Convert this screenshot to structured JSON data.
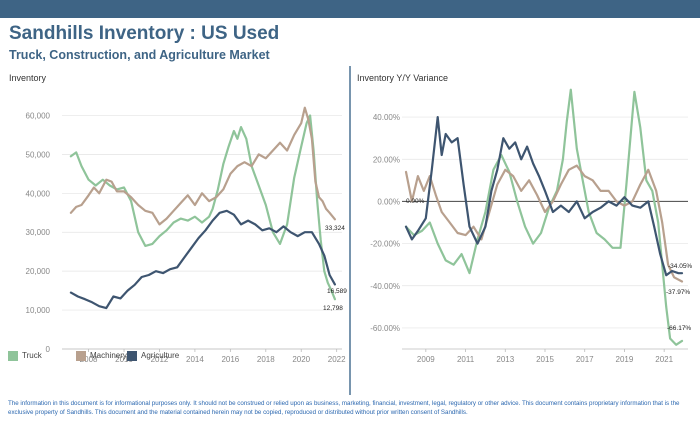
{
  "header": {
    "title": "Sandhills Inventory : US Used",
    "subtitle": "Truck, Construction, and Agriculture Market"
  },
  "colors": {
    "Truck": "#8fc49a",
    "Machinery": "#b8a08e",
    "Agriculture": "#3e5570",
    "bar": "#3e6485"
  },
  "legend": {
    "truck": "Truck",
    "machinery": "Machinery",
    "agriculture": "Agriculture"
  },
  "footer": {
    "text": "The information in this document is for informational purposes only.  It should not be construed or relied upon as business, marketing, financial, investment, legal, regulatory or other advice. This document contains proprietary information that is the exclusive property of Sandhills. This document and the material contained herein may not be copied, reproduced or distributed without prior written consent of Sandhills."
  },
  "chart_data": [
    {
      "type": "line",
      "title": "Inventory",
      "x_unit": "year",
      "xlim": [
        2006.5,
        2022.3
      ],
      "xticks": [
        2008,
        2010,
        2012,
        2014,
        2016,
        2018,
        2020,
        2022
      ],
      "ylim": [
        0,
        65000
      ],
      "yticks": [
        0,
        10000,
        20000,
        30000,
        40000,
        50000,
        60000
      ],
      "ytick_labels": [
        "0",
        "10,000",
        "20,000",
        "30,000",
        "40,000",
        "50,000",
        "60,000"
      ],
      "grid": true,
      "series": [
        {
          "name": "Truck",
          "x": [
            2007.0,
            2007.3,
            2007.6,
            2008.0,
            2008.4,
            2008.8,
            2009.2,
            2009.6,
            2010.0,
            2010.4,
            2010.8,
            2011.2,
            2011.6,
            2012.0,
            2012.4,
            2012.8,
            2013.2,
            2013.6,
            2014.0,
            2014.4,
            2014.8,
            2015.0,
            2015.3,
            2015.6,
            2015.9,
            2016.2,
            2016.4,
            2016.6,
            2016.9,
            2017.2,
            2017.6,
            2018.0,
            2018.4,
            2018.8,
            2019.2,
            2019.6,
            2020.0,
            2020.3,
            2020.5,
            2020.7,
            2020.9,
            2021.1,
            2021.3,
            2021.5,
            2021.7,
            2021.9
          ],
          "values": [
            49500,
            50500,
            47000,
            43500,
            42000,
            43500,
            42000,
            41000,
            41500,
            38000,
            30000,
            26500,
            27000,
            29000,
            30500,
            32500,
            33500,
            33000,
            34000,
            32500,
            34000,
            36000,
            41000,
            47500,
            52000,
            56000,
            54000,
            57000,
            54000,
            47000,
            42000,
            37000,
            30000,
            27000,
            32000,
            44000,
            52000,
            58000,
            60000,
            51000,
            38000,
            28000,
            20000,
            17000,
            15000,
            12798
          ]
        },
        {
          "name": "Machinery",
          "x": [
            2007.0,
            2007.3,
            2007.6,
            2008.0,
            2008.3,
            2008.6,
            2009.0,
            2009.3,
            2009.6,
            2010.0,
            2010.4,
            2010.8,
            2011.2,
            2011.6,
            2012.0,
            2012.4,
            2012.8,
            2013.2,
            2013.6,
            2014.0,
            2014.4,
            2014.8,
            2015.2,
            2015.6,
            2016.0,
            2016.4,
            2016.8,
            2017.2,
            2017.6,
            2018.0,
            2018.4,
            2018.8,
            2019.2,
            2019.6,
            2020.0,
            2020.2,
            2020.4,
            2020.6,
            2020.8,
            2021.0,
            2021.2,
            2021.4,
            2021.6,
            2021.9
          ],
          "values": [
            35000,
            36500,
            37000,
            39500,
            41500,
            40000,
            43500,
            43000,
            40500,
            40500,
            39000,
            37000,
            35500,
            35000,
            32000,
            33500,
            35500,
            37500,
            39500,
            37000,
            40000,
            38000,
            39000,
            41000,
            45000,
            47000,
            48000,
            47000,
            50000,
            49000,
            51000,
            53000,
            51000,
            55000,
            58000,
            62000,
            59000,
            54000,
            43000,
            39000,
            38000,
            36000,
            35000,
            33324
          ]
        },
        {
          "name": "Agriculture",
          "x": [
            2007.0,
            2007.4,
            2007.8,
            2008.2,
            2008.6,
            2009.0,
            2009.4,
            2009.8,
            2010.2,
            2010.6,
            2011.0,
            2011.4,
            2011.8,
            2012.2,
            2012.6,
            2013.0,
            2013.4,
            2013.8,
            2014.2,
            2014.6,
            2015.0,
            2015.4,
            2015.8,
            2016.2,
            2016.6,
            2017.0,
            2017.4,
            2017.8,
            2018.2,
            2018.6,
            2019.0,
            2019.4,
            2019.8,
            2020.2,
            2020.6,
            2021.0,
            2021.3,
            2021.6,
            2021.9
          ],
          "values": [
            14500,
            13500,
            12800,
            12000,
            11000,
            10500,
            13500,
            13000,
            15000,
            16500,
            18500,
            19000,
            20000,
            19500,
            20500,
            21000,
            23500,
            26000,
            28500,
            30500,
            33000,
            35000,
            35500,
            34500,
            32000,
            33000,
            32000,
            30500,
            31000,
            30000,
            31500,
            30000,
            29000,
            30000,
            30000,
            27000,
            24000,
            19000,
            16589
          ]
        }
      ],
      "annotations": [
        "33,324",
        "16,589",
        "12,798"
      ]
    },
    {
      "type": "line",
      "title": "Inventory Y/Y Variance",
      "x_unit": "year",
      "xlim": [
        2007.8,
        2022.2
      ],
      "xticks": [
        2009,
        2011,
        2013,
        2015,
        2017,
        2019,
        2021
      ],
      "ylim": [
        -70,
        50
      ],
      "yticks": [
        -60,
        -40,
        -20,
        0,
        20,
        40
      ],
      "ytick_labels": [
        "-60.00%",
        "-40.00%",
        "-20.00%",
        "0.00%",
        "20.00%",
        "40.00%"
      ],
      "grid": true,
      "series": [
        {
          "name": "Truck",
          "x": [
            2008.0,
            2008.4,
            2008.8,
            2009.2,
            2009.6,
            2010.0,
            2010.4,
            2010.8,
            2011.2,
            2011.6,
            2012.0,
            2012.4,
            2012.8,
            2013.2,
            2013.6,
            2014.0,
            2014.4,
            2014.8,
            2015.2,
            2015.6,
            2015.9,
            2016.1,
            2016.3,
            2016.6,
            2016.9,
            2017.2,
            2017.6,
            2018.0,
            2018.4,
            2018.8,
            2019.1,
            2019.3,
            2019.5,
            2019.8,
            2020.1,
            2020.4,
            2020.7,
            2020.9,
            2021.1,
            2021.3,
            2021.6,
            2021.9
          ],
          "values": [
            -12,
            -16,
            -14,
            -10,
            -20,
            -28,
            -30,
            -25,
            -34,
            -18,
            -5,
            15,
            22,
            14,
            0,
            -12,
            -20,
            -15,
            -3,
            5,
            20,
            38,
            53,
            25,
            10,
            -5,
            -15,
            -18,
            -22,
            -22,
            8,
            30,
            52,
            35,
            10,
            5,
            -10,
            -30,
            -50,
            -65,
            -68,
            -66.17
          ]
        },
        {
          "name": "Machinery",
          "x": [
            2008.0,
            2008.3,
            2008.6,
            2008.9,
            2009.2,
            2009.5,
            2009.8,
            2010.2,
            2010.6,
            2011.0,
            2011.4,
            2011.8,
            2012.2,
            2012.6,
            2013.0,
            2013.4,
            2013.8,
            2014.2,
            2014.6,
            2015.0,
            2015.4,
            2015.8,
            2016.2,
            2016.6,
            2017.0,
            2017.4,
            2017.8,
            2018.2,
            2018.6,
            2019.0,
            2019.4,
            2019.8,
            2020.2,
            2020.6,
            2020.9,
            2021.2,
            2021.5,
            2021.9
          ],
          "values": [
            14,
            0,
            12,
            5,
            12,
            3,
            -5,
            -10,
            -15,
            -16,
            -12,
            -18,
            -5,
            8,
            15,
            12,
            5,
            10,
            3,
            -5,
            0,
            8,
            15,
            17,
            12,
            10,
            5,
            5,
            0,
            -2,
            0,
            8,
            15,
            5,
            -10,
            -30,
            -36,
            -37.97
          ]
        },
        {
          "name": "Agriculture",
          "x": [
            2008.0,
            2008.3,
            2008.6,
            2009.0,
            2009.3,
            2009.6,
            2009.8,
            2010.0,
            2010.3,
            2010.6,
            2010.9,
            2011.2,
            2011.6,
            2012.0,
            2012.3,
            2012.6,
            2012.9,
            2013.2,
            2013.5,
            2013.8,
            2014.1,
            2014.4,
            2014.7,
            2015.0,
            2015.4,
            2015.8,
            2016.2,
            2016.6,
            2017.0,
            2017.4,
            2017.8,
            2018.2,
            2018.6,
            2019.0,
            2019.4,
            2019.8,
            2020.2,
            2020.5,
            2020.8,
            2021.1,
            2021.4,
            2021.7,
            2021.9
          ],
          "values": [
            -12,
            -18,
            -14,
            -8,
            15,
            40,
            22,
            32,
            28,
            30,
            8,
            -12,
            -20,
            -12,
            5,
            15,
            30,
            25,
            28,
            20,
            26,
            18,
            12,
            5,
            -5,
            -2,
            -5,
            0,
            -8,
            -5,
            -3,
            0,
            -2,
            2,
            -2,
            -3,
            0,
            -12,
            -25,
            -35,
            -33,
            -34,
            -34.05
          ]
        }
      ],
      "annotations": [
        "0.00%",
        "-34.05%",
        "-37.97%",
        "-66.17%"
      ]
    }
  ]
}
